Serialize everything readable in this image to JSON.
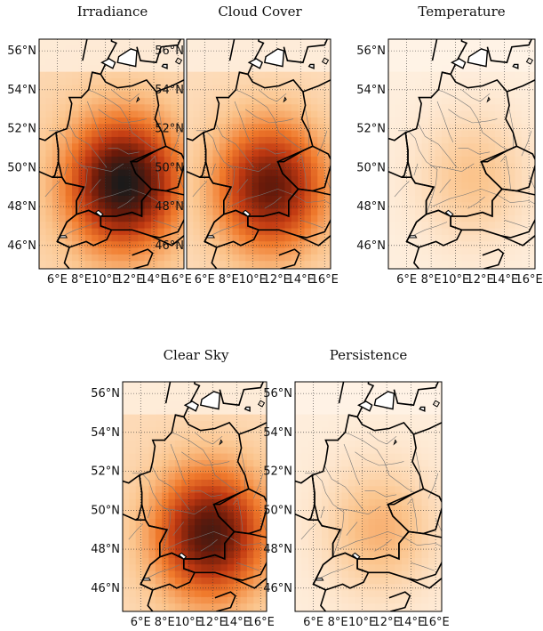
{
  "panels": [
    {
      "title": "Irradiance",
      "intensity": 1.0,
      "hotspot": {
        "lon": 11.5,
        "lat": 49.2
      }
    },
    {
      "title": "Cloud Cover",
      "intensity": 0.82,
      "hotspot": {
        "lon": 11.5,
        "lat": 49.0
      }
    },
    {
      "title": "Temperature",
      "intensity": 0.2,
      "hotspot": {
        "lon": 11.5,
        "lat": 49.5
      }
    },
    {
      "title": "Clear Sky",
      "intensity": 0.88,
      "hotspot": {
        "lon": 11.8,
        "lat": 48.8
      }
    },
    {
      "title": "Persistence",
      "intensity": 0.25,
      "hotspot": {
        "lon": 11.5,
        "lat": 49.0
      }
    }
  ],
  "map_extent": {
    "lon": [
      4.5,
      16.5
    ],
    "lat": [
      44.8,
      56.6
    ]
  },
  "lat_ticks": [
    "46°N",
    "48°N",
    "50°N",
    "52°N",
    "54°N",
    "56°N"
  ],
  "lat_tick_values": [
    46,
    48,
    50,
    52,
    54,
    56
  ],
  "lon_ticks": [
    "6°E",
    "8°E",
    "10°E",
    "12°E",
    "14°E",
    "16°E"
  ],
  "lon_tick_values": [
    6,
    8,
    10,
    12,
    14,
    16
  ],
  "colormap": [
    "#fff5ea",
    "#fbc48c",
    "#f07a2c",
    "#c23a12",
    "#6a1a0a",
    "#1a1a1a"
  ]
}
